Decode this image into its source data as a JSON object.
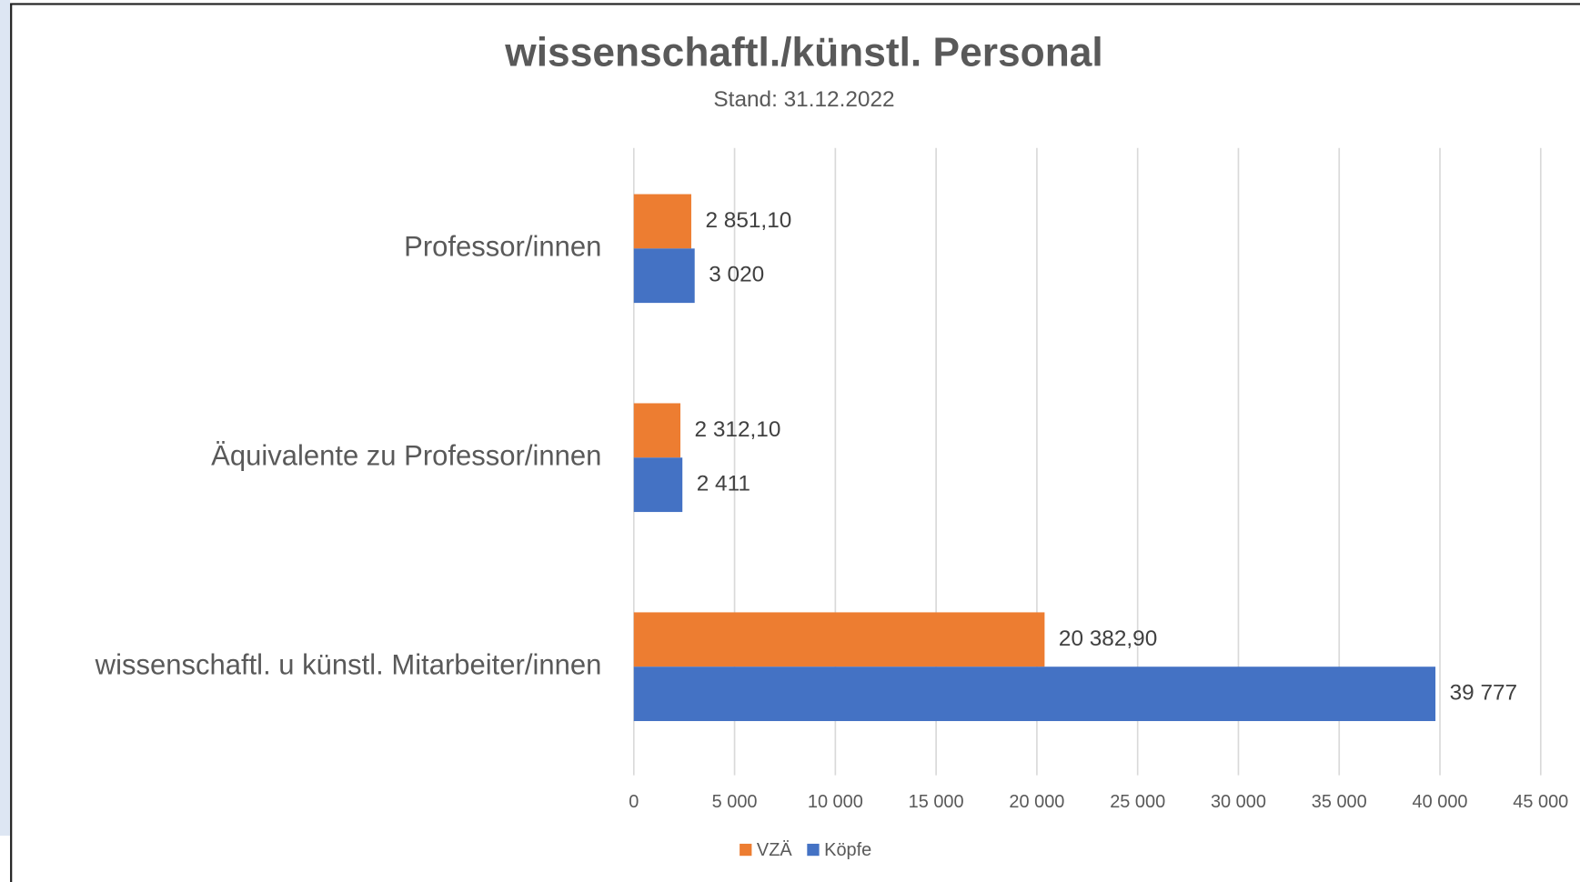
{
  "chart_data": {
    "type": "barh",
    "title": "wissenschaftl./künstl. Personal",
    "subtitle": "Stand: 31.12.2022",
    "categories": [
      "Professor/innen",
      "Äquivalente zu Professor/innen",
      "wissenschaftl. u künstl. Mitarbeiter/innen"
    ],
    "series": [
      {
        "name": "VZÄ",
        "color": "#ED7D31",
        "values": [
          2851.1,
          2312.1,
          20382.9
        ],
        "value_labels": [
          "2 851,10",
          "2 312,10",
          "20 382,90"
        ]
      },
      {
        "name": "Köpfe",
        "color": "#4472C4",
        "values": [
          3020,
          2411,
          39777
        ],
        "value_labels": [
          "3 020",
          "2 411",
          "39 777"
        ]
      }
    ],
    "xlim": [
      0,
      45000
    ],
    "xticks": [
      0,
      {
        "value": 5000,
        "label": "5 000"
      },
      {
        "value": 10000,
        "label": "10 000"
      },
      {
        "value": 15000,
        "label": "15 000"
      },
      {
        "value": 20000,
        "label": "20 000"
      },
      {
        "value": 25000,
        "label": "25 000"
      },
      {
        "value": 30000,
        "label": "30 000"
      },
      {
        "value": 35000,
        "label": "35 000"
      },
      {
        "value": 40000,
        "label": "40 000"
      },
      {
        "value": 45000,
        "label": "45 000"
      }
    ],
    "grid": true,
    "legend": "bottom"
  }
}
